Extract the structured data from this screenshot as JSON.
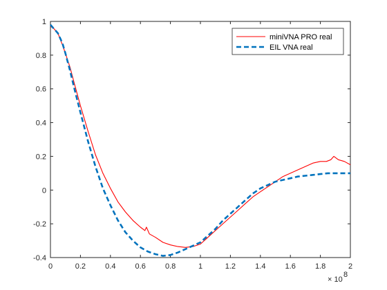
{
  "chart_data": {
    "type": "line",
    "xlim": [
      0,
      2
    ],
    "ylim": [
      -0.4,
      1
    ],
    "x_exponent_label": "× 10",
    "x_exponent_power": "8",
    "grid": false,
    "legend_position": "top-right",
    "xticks": [
      "0",
      "0.2",
      "0.4",
      "0.6",
      "0.8",
      "1",
      "1.2",
      "1.4",
      "1.6",
      "1.8",
      "2"
    ],
    "xtick_values": [
      0,
      0.2,
      0.4,
      0.6,
      0.8,
      1.0,
      1.2,
      1.4,
      1.6,
      1.8,
      2.0
    ],
    "yticks": [
      "-0.4",
      "-0.2",
      "0",
      "0.2",
      "0.4",
      "0.6",
      "0.8",
      "1"
    ],
    "ytick_values": [
      -0.4,
      -0.2,
      0,
      0.2,
      0.4,
      0.6,
      0.8,
      1.0
    ],
    "series": [
      {
        "name": "miniVNA PRO real",
        "color": "#ff0000",
        "style": "solid",
        "x": [
          0,
          0.02,
          0.05,
          0.08,
          0.1,
          0.13,
          0.16,
          0.2,
          0.25,
          0.3,
          0.35,
          0.4,
          0.45,
          0.5,
          0.55,
          0.6,
          0.63,
          0.64,
          0.66,
          0.7,
          0.75,
          0.8,
          0.85,
          0.9,
          0.95,
          1.0,
          1.05,
          1.1,
          1.15,
          1.2,
          1.25,
          1.3,
          1.35,
          1.4,
          1.45,
          1.5,
          1.55,
          1.6,
          1.65,
          1.7,
          1.75,
          1.8,
          1.84,
          1.87,
          1.89,
          1.92,
          1.96,
          2.0
        ],
        "values": [
          0.97,
          0.96,
          0.93,
          0.86,
          0.81,
          0.73,
          0.63,
          0.5,
          0.35,
          0.21,
          0.1,
          0.01,
          -0.07,
          -0.13,
          -0.18,
          -0.22,
          -0.24,
          -0.22,
          -0.26,
          -0.28,
          -0.31,
          -0.325,
          -0.335,
          -0.34,
          -0.335,
          -0.32,
          -0.28,
          -0.24,
          -0.2,
          -0.16,
          -0.12,
          -0.08,
          -0.04,
          -0.01,
          0.02,
          0.05,
          0.08,
          0.1,
          0.12,
          0.14,
          0.16,
          0.17,
          0.17,
          0.18,
          0.2,
          0.18,
          0.17,
          0.15
        ]
      },
      {
        "name": "EIL VNA real",
        "color": "#0072bd",
        "style": "dashed",
        "x": [
          0,
          0.02,
          0.05,
          0.08,
          0.1,
          0.13,
          0.16,
          0.2,
          0.25,
          0.3,
          0.35,
          0.4,
          0.45,
          0.5,
          0.55,
          0.6,
          0.65,
          0.7,
          0.75,
          0.8,
          0.85,
          0.9,
          0.95,
          1.0,
          1.05,
          1.1,
          1.15,
          1.2,
          1.25,
          1.3,
          1.35,
          1.4,
          1.45,
          1.5,
          1.55,
          1.6,
          1.65,
          1.7,
          1.75,
          1.8,
          1.85,
          1.9,
          1.95,
          2.0
        ],
        "values": [
          0.98,
          0.96,
          0.93,
          0.87,
          0.81,
          0.71,
          0.6,
          0.46,
          0.29,
          0.14,
          0.01,
          -0.09,
          -0.18,
          -0.25,
          -0.3,
          -0.34,
          -0.365,
          -0.38,
          -0.39,
          -0.385,
          -0.37,
          -0.35,
          -0.33,
          -0.31,
          -0.27,
          -0.23,
          -0.18,
          -0.14,
          -0.1,
          -0.06,
          -0.02,
          0.01,
          0.03,
          0.05,
          0.06,
          0.07,
          0.08,
          0.085,
          0.09,
          0.095,
          0.1,
          0.1,
          0.1,
          0.1
        ]
      }
    ]
  }
}
